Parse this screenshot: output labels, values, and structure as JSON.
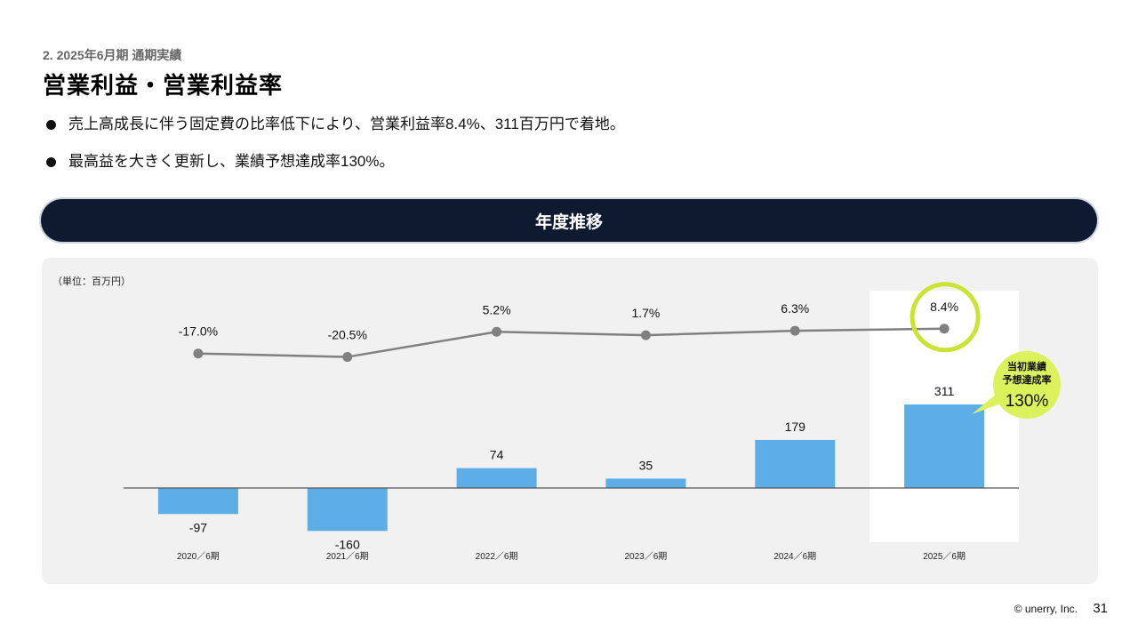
{
  "header": {
    "section": "2. 2025年6月期 通期実績",
    "title": "営業利益・営業利益率"
  },
  "bullets": [
    "売上高成長に伴う固定費の比率低下により、営業利益率8.4%、311百万円で着地。",
    "最高益を大きく更新し、業績予想達成率130%。"
  ],
  "banner": "年度推移",
  "unit_label": "（単位：百万円）",
  "callout": {
    "line1": "当初業績",
    "line2": "予想達成率",
    "value": "130%"
  },
  "chart_data": {
    "type": "bar",
    "categories": [
      "2020／6期",
      "2021／6期",
      "2022／6期",
      "2023／6期",
      "2024／6期",
      "2025／6期"
    ],
    "series": [
      {
        "name": "",
        "type": "bar",
        "values": [
          -97,
          -160,
          74,
          35,
          179,
          311
        ],
        "labels": [
          "-97",
          "-160",
          "74",
          "35",
          "179",
          "311"
        ]
      },
      {
        "name": "",
        "type": "line",
        "values": [
          -17.0,
          -20.5,
          5.2,
          1.7,
          6.3,
          8.4
        ],
        "labels": [
          "-17.0%",
          "-20.5%",
          "5.2%",
          "1.7%",
          "6.3%",
          "8.4%"
        ]
      }
    ],
    "highlight_category": "2025／6期",
    "colors": {
      "bar": "#5daee6",
      "line": "#808080",
      "highlight_ring": "#cbe332",
      "callout": "#dcf25c"
    }
  },
  "footer": {
    "copyright": "© unerry, Inc.",
    "page": "31"
  }
}
